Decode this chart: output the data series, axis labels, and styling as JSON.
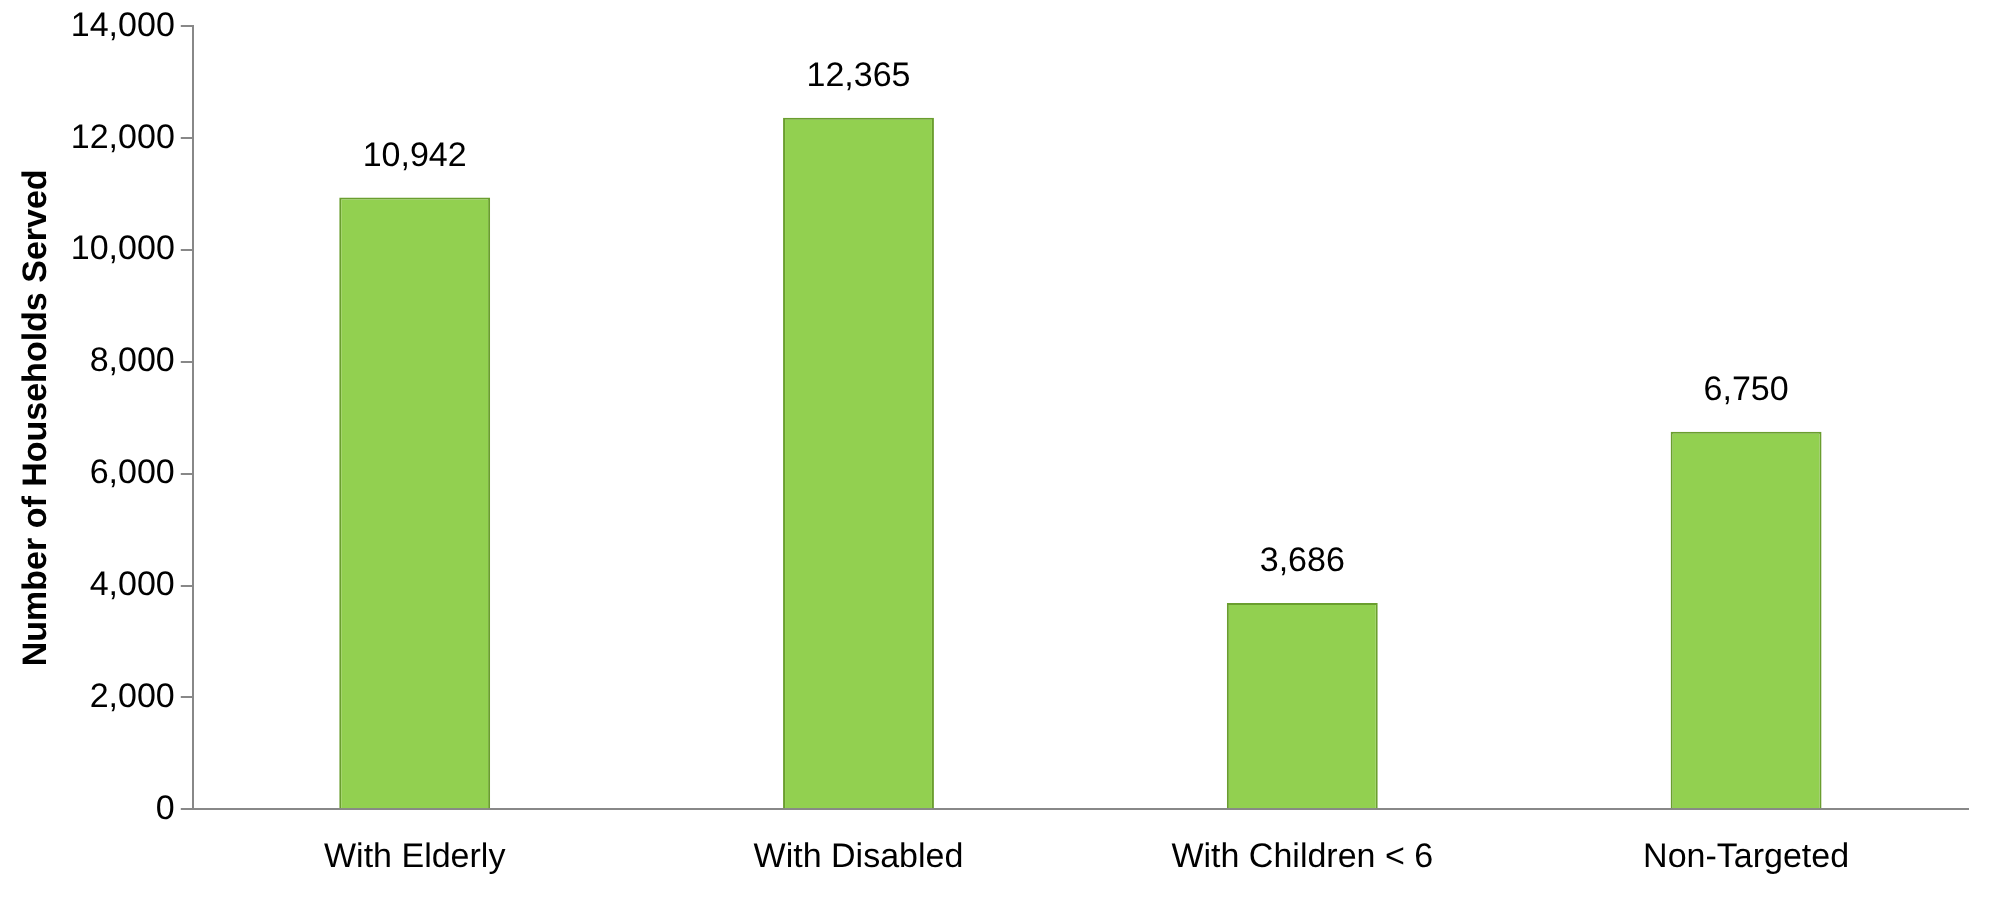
{
  "chart_data": {
    "type": "bar",
    "ylabel": "Number of Households Served",
    "categories": [
      "With Elderly",
      "With Disabled",
      "With Children < 6",
      "Non-Targeted"
    ],
    "values": [
      10942,
      12365,
      3686,
      6750
    ],
    "value_labels": [
      "10,942",
      "12,365",
      "3,686",
      "6,750"
    ],
    "color": "#92d050",
    "ylim": [
      0,
      14000
    ],
    "yticks": [
      {
        "value": 0,
        "label": "0"
      },
      {
        "value": 2000,
        "label": "2,000"
      },
      {
        "value": 4000,
        "label": "4,000"
      },
      {
        "value": 6000,
        "label": "6,000"
      },
      {
        "value": 8000,
        "label": "8,000"
      },
      {
        "value": 10000,
        "label": "10,000"
      },
      {
        "value": 12000,
        "label": "12,000"
      },
      {
        "value": 14000,
        "label": "14,000"
      }
    ],
    "grid": false,
    "legend": false
  }
}
